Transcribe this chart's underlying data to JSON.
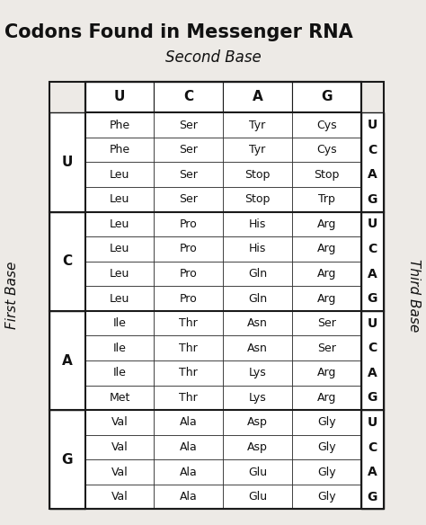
{
  "title": "Codons Found in Messenger RNA",
  "subtitle": "Second Base",
  "first_base_label": "First Base",
  "third_base_label": "Third Base",
  "second_base_cols": [
    "U",
    "C",
    "A",
    "G"
  ],
  "first_base_rows": [
    "U",
    "C",
    "A",
    "G"
  ],
  "third_base_vals": [
    "U",
    "C",
    "A",
    "G"
  ],
  "table_data": [
    [
      [
        "Phe",
        "Phe",
        "Leu",
        "Leu"
      ],
      [
        "Ser",
        "Ser",
        "Ser",
        "Ser"
      ],
      [
        "Tyr",
        "Tyr",
        "Stop",
        "Stop"
      ],
      [
        "Cys",
        "Cys",
        "Stop",
        "Trp"
      ]
    ],
    [
      [
        "Leu",
        "Leu",
        "Leu",
        "Leu"
      ],
      [
        "Pro",
        "Pro",
        "Pro",
        "Pro"
      ],
      [
        "His",
        "His",
        "Gln",
        "Gln"
      ],
      [
        "Arg",
        "Arg",
        "Arg",
        "Arg"
      ]
    ],
    [
      [
        "Ile",
        "Ile",
        "Ile",
        "Met"
      ],
      [
        "Thr",
        "Thr",
        "Thr",
        "Thr"
      ],
      [
        "Asn",
        "Asn",
        "Lys",
        "Lys"
      ],
      [
        "Ser",
        "Ser",
        "Arg",
        "Arg"
      ]
    ],
    [
      [
        "Val",
        "Val",
        "Val",
        "Val"
      ],
      [
        "Ala",
        "Ala",
        "Ala",
        "Ala"
      ],
      [
        "Asp",
        "Asp",
        "Glu",
        "Glu"
      ],
      [
        "Gly",
        "Gly",
        "Gly",
        "Gly"
      ]
    ]
  ],
  "bg_color": "#edeae6",
  "title_fontsize": 15,
  "subtitle_fontsize": 12,
  "label_fontsize": 10,
  "cell_fontsize": 9,
  "header_fontsize": 11
}
